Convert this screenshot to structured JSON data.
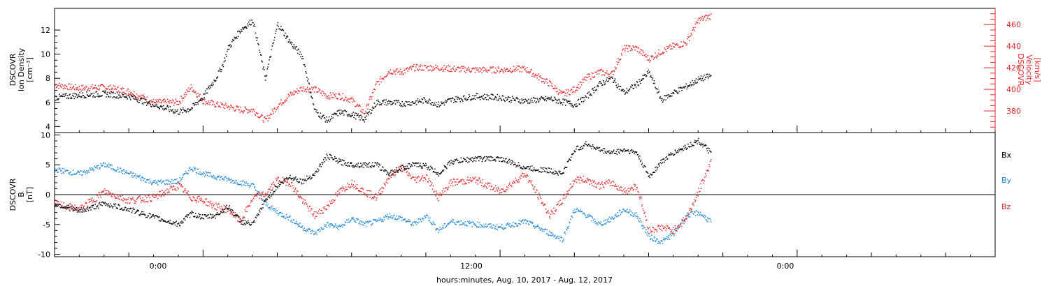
{
  "colors": {
    "ion_density": "#000000",
    "velocity": "#e8262a",
    "bx": "#000000",
    "by": "#1f86d6",
    "bz": "#e8262a"
  },
  "x_axis": {
    "label": "hours:minutes, Aug. 10, 2017 - Aug. 12, 2017",
    "range_hours": [
      -6,
      32
    ],
    "ticks": [
      {
        "h": 0,
        "label": "0:00"
      },
      {
        "h": 12,
        "label": "12:00"
      },
      {
        "h": 24,
        "label": "0:00"
      }
    ]
  },
  "panel_top": {
    "left_label": [
      "DSCOVR",
      "Ion Density",
      "[cm⁻³]"
    ],
    "right_label": [
      "DSCOVR",
      "Velocity",
      "[km/s]"
    ],
    "left_ticks": [
      "4",
      "6",
      "8",
      "10",
      "12"
    ],
    "right_ticks": [
      "380",
      "400",
      "420",
      "440",
      "460"
    ]
  },
  "panel_bottom": {
    "left_label": [
      "DSCOVR",
      "B",
      "[nT]"
    ],
    "ticks": [
      "-10",
      "-5",
      "0",
      "5",
      "10"
    ],
    "legend": [
      "Bx",
      "By",
      "Bz"
    ]
  },
  "chart_data": [
    {
      "type": "scatter",
      "xlabel": "hours:minutes, Aug. 10, 2017 - Aug. 12, 2017",
      "ylabel": "DSCOVR Ion Density [cm⁻³]",
      "y2label": "DSCOVR Velocity [km/s]",
      "xlim": [
        -6,
        32
      ],
      "ylim": [
        3.5,
        13.8
      ],
      "y2lim": [
        360,
        475
      ],
      "series": [
        {
          "axis": "left",
          "x": [
            -6,
            -5,
            -4,
            -3,
            -2,
            -1,
            -0.5,
            0,
            0.5,
            0.8,
            1,
            1.5,
            2,
            2.5,
            3,
            3.5,
            4,
            4.5,
            5,
            5.5,
            6,
            6.5,
            7,
            7.5,
            8,
            8.5,
            9,
            9.5,
            10,
            11,
            12,
            13,
            14,
            15,
            15.5,
            16,
            16.5,
            17,
            17.5,
            18,
            18.5,
            19,
            19.5,
            20,
            20.5
          ],
          "y": [
            6.4,
            6.6,
            6.7,
            6.5,
            5.8,
            5.2,
            5.5,
            6.5,
            8.0,
            9.2,
            10.5,
            12.0,
            12.8,
            8.0,
            12.5,
            11.0,
            9.8,
            5.3,
            4.5,
            5.2,
            5.0,
            4.6,
            6.0,
            6.0,
            5.9,
            6.0,
            6.2,
            5.8,
            6.2,
            6.5,
            6.4,
            6.1,
            6.3,
            5.8,
            6.5,
            7.5,
            8.0,
            6.8,
            7.5,
            8.5,
            6.2,
            6.8,
            7.3,
            7.9,
            8.2
          ]
        },
        {
          "axis": "right",
          "x": [
            -6,
            -5,
            -4,
            -3,
            -2,
            -1,
            -0.5,
            0,
            0.5,
            1,
            1.5,
            2,
            2.5,
            3,
            3.5,
            4,
            4.5,
            5,
            5.5,
            6,
            6.5,
            7,
            7.5,
            8,
            8.5,
            9,
            9.5,
            10,
            11,
            12,
            13,
            14,
            14.5,
            15,
            15.5,
            16,
            16.5,
            17,
            17.5,
            18,
            18.5,
            19,
            19.5,
            20,
            20.5
          ],
          "y": [
            404,
            401,
            402,
            398,
            388,
            388,
            402,
            389,
            386,
            384,
            381,
            381,
            371,
            385,
            395,
            401,
            400,
            394,
            394,
            390,
            378,
            405,
            417,
            416,
            420,
            420,
            420,
            419,
            418,
            418,
            419,
            405,
            395,
            400,
            411,
            416,
            414,
            438,
            438,
            428,
            435,
            440,
            443,
            464,
            468
          ]
        }
      ]
    },
    {
      "type": "scatter",
      "xlabel": "hours:minutes, Aug. 10, 2017 - Aug. 12, 2017",
      "ylabel": "DSCOVR B [nT]",
      "xlim": [
        -6,
        32
      ],
      "ylim": [
        -10.4,
        10.4
      ],
      "series": [
        {
          "name": "Bx",
          "x": [
            -6,
            -5,
            -4,
            -3,
            -2,
            -1,
            -0.5,
            0,
            0.5,
            1,
            1.5,
            2,
            2.5,
            3,
            3.5,
            4,
            4.5,
            5,
            5.5,
            6,
            6.5,
            7,
            7.5,
            8,
            8.5,
            9,
            9.5,
            10,
            11,
            12,
            13,
            14,
            14.5,
            15,
            15.5,
            16,
            16.5,
            17,
            17.5,
            18,
            18.5,
            19,
            19.5,
            20,
            20.5
          ],
          "y": [
            -1.5,
            -2.8,
            -1.5,
            -2.5,
            -3.8,
            -5.0,
            -3.2,
            -3.8,
            -3.5,
            -2.0,
            -4.5,
            -5.0,
            -1.0,
            1.5,
            3.0,
            2.2,
            3.5,
            6.5,
            5.5,
            5.0,
            5.0,
            5.0,
            3.5,
            4.5,
            5.0,
            4.8,
            3.5,
            5.5,
            6.0,
            6.0,
            4.5,
            4.0,
            3.5,
            7.5,
            8.5,
            7.5,
            7.0,
            7.5,
            7.0,
            3.0,
            5.5,
            7.0,
            8.0,
            9.0,
            7.0
          ]
        },
        {
          "name": "By",
          "x": [
            -6,
            -5,
            -4,
            -3,
            -2,
            -1,
            -0.5,
            0,
            0.5,
            1,
            1.5,
            2,
            2.5,
            3,
            3.5,
            4,
            4.5,
            5,
            5.5,
            6,
            6.5,
            7,
            7.5,
            8,
            8.5,
            9,
            9.5,
            10,
            11,
            12,
            13,
            14,
            14.5,
            15,
            15.5,
            16,
            16.5,
            17,
            17.5,
            18,
            18.5,
            19,
            19.5,
            20,
            20.5
          ],
          "y": [
            4.2,
            3.5,
            5.0,
            3.5,
            2.0,
            2.2,
            4.5,
            3.5,
            3.0,
            2.5,
            2.0,
            1.5,
            -1.5,
            -3.0,
            -4.0,
            -5.5,
            -6.5,
            -5.0,
            -5.5,
            -4.0,
            -5.0,
            -4.5,
            -3.5,
            -4.0,
            -5.0,
            -3.5,
            -6.0,
            -4.5,
            -5.0,
            -5.5,
            -4.5,
            -6.5,
            -7.5,
            -2.5,
            -3.5,
            -5.0,
            -4.0,
            -2.5,
            -3.5,
            -7.0,
            -8.0,
            -6.5,
            -3.5,
            -3.0,
            -4.5
          ]
        },
        {
          "name": "Bz",
          "x": [
            -6,
            -5,
            -4,
            -3,
            -2,
            -1,
            -0.5,
            0,
            0.5,
            1,
            1.5,
            2,
            2.5,
            3,
            3.5,
            4,
            4.5,
            5,
            5.5,
            6,
            6.5,
            7,
            7.5,
            8,
            8.5,
            9,
            9.5,
            10,
            11,
            12,
            13,
            14,
            14.5,
            15,
            15.5,
            16,
            16.5,
            17,
            17.5,
            18,
            18.5,
            19,
            19.5,
            20,
            20.5
          ],
          "y": [
            -1.5,
            -2.5,
            0.5,
            -1.0,
            -0.5,
            1.5,
            -0.5,
            -1.0,
            -2.0,
            -2.5,
            -4.5,
            -0.5,
            0.0,
            2.5,
            2.0,
            -1.0,
            -3.5,
            -2.0,
            0.5,
            2.0,
            0.5,
            -0.5,
            3.0,
            4.5,
            2.5,
            3.0,
            -0.5,
            2.0,
            2.5,
            0.5,
            3.5,
            -3.5,
            -1.0,
            2.5,
            2.5,
            1.5,
            2.0,
            0.5,
            1.5,
            -6.0,
            -5.5,
            -6.0,
            -4.0,
            0.5,
            5.5
          ]
        }
      ]
    }
  ]
}
